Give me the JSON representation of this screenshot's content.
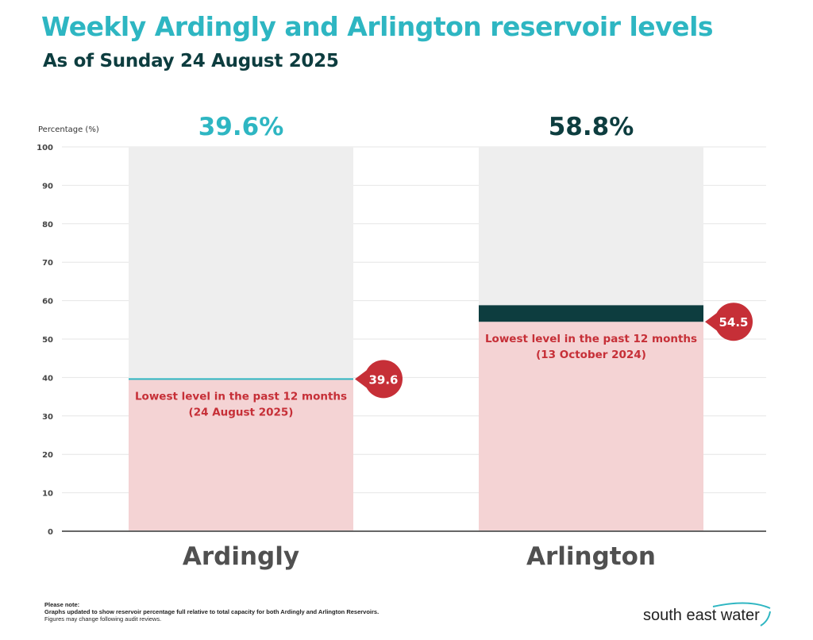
{
  "header": {
    "title": "Weekly Ardingly and Arlington reservoir levels",
    "subtitle": "As of Sunday 24 August 2025"
  },
  "chart_data": {
    "type": "bar",
    "ylabel": "Percentage (%)",
    "ylim": [
      0,
      100
    ],
    "yticks": [
      0,
      10,
      20,
      30,
      40,
      50,
      60,
      70,
      80,
      90,
      100
    ],
    "grid": true,
    "categories": [
      "Ardingly",
      "Arlington"
    ],
    "values": [
      39.6,
      58.8
    ],
    "value_labels": [
      "39.6%",
      "58.8%"
    ],
    "value_colors": [
      "#2eb6c2",
      "#0d3d3f"
    ],
    "lowest": [
      {
        "value": 39.6,
        "label": "39.6",
        "text_line1": "Lowest level in the past 12 months",
        "text_line2": "(24 August 2025)"
      },
      {
        "value": 54.5,
        "label": "54.5",
        "text_line1": "Lowest level in the past 12 months",
        "text_line2": "(13 October 2024)"
      }
    ],
    "colors": {
      "capacity": "#eeeeee",
      "lowest_fill": "#f4d3d4",
      "marker": "#c62f37",
      "ardingly_line": "#2eb6c2",
      "arlington_band": "#0d3d3f",
      "axis": "#666666",
      "grid": "#e6e6e6",
      "category_text": "#505050"
    }
  },
  "footer": {
    "note_title": "Please note:",
    "note_line1": "Graphs updated to show reservoir percentage full relative to total capacity for both Ardingly and Arlington Reservoirs.",
    "note_line2": "Figures may change following audit reviews.",
    "logo_text": "south east water",
    "logo_color": "#2eb6c2"
  }
}
